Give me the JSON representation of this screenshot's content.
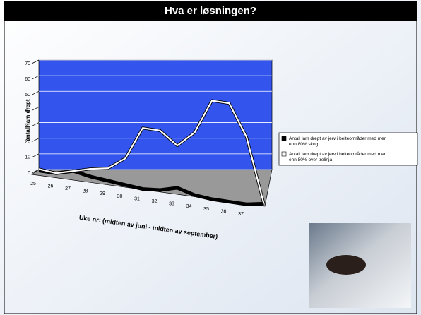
{
  "header": {
    "title": "Hva er løsningen?"
  },
  "chart_data": {
    "type": "line",
    "y_label": "antall lam drept",
    "x_label": "Uke nr: (midten av juni - midten av september)",
    "categories": [
      "25",
      "26",
      "27",
      "28",
      "29",
      "30",
      "31",
      "32",
      "33",
      "34",
      "35",
      "36",
      "37",
      null
    ],
    "series": [
      {
        "name": "Antall lam drept av jerv i beiteområder med mer enn 80% skog",
        "color": "#000000",
        "values": [
          2,
          2,
          5,
          3,
          2,
          1,
          0,
          1,
          4,
          1,
          0,
          0,
          0,
          2
        ]
      },
      {
        "name": "Antall lam drept av jerv i beiteområder med mer enn 80% over trelinja",
        "color": "#ffffff",
        "values": [
          3,
          2,
          5,
          8,
          10,
          18,
          39,
          39,
          31,
          41,
          63,
          63,
          43,
          2
        ]
      }
    ],
    "ylim": [
      0,
      70
    ],
    "yticks": [
      0,
      10,
      20,
      30,
      40,
      50,
      60,
      70
    ],
    "grid": true,
    "legend": "right"
  }
}
